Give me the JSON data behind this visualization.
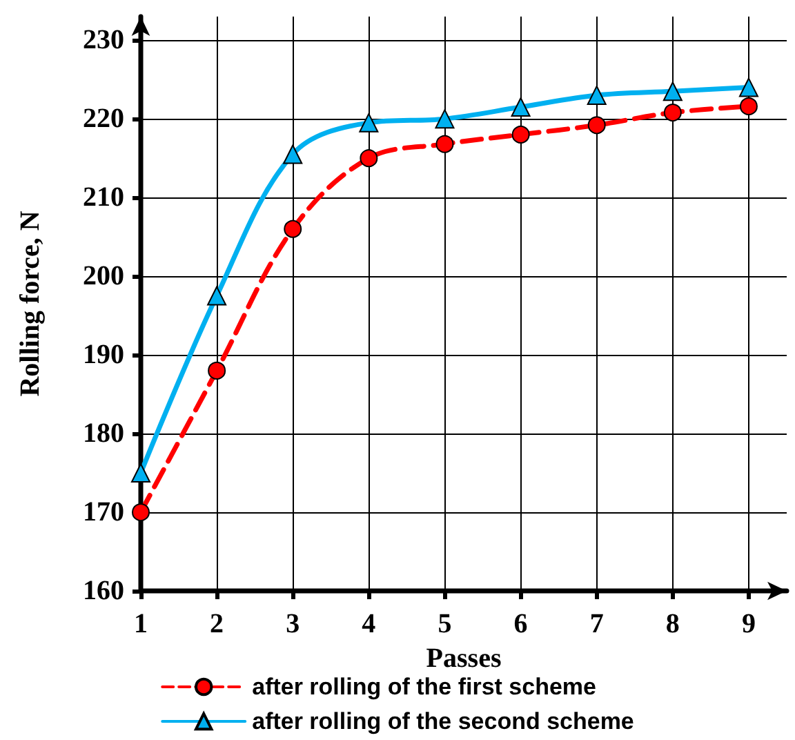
{
  "chart_data": {
    "type": "line",
    "xlabel": "Passes",
    "ylabel": "Rolling force, N",
    "x": [
      1,
      2,
      3,
      4,
      5,
      6,
      7,
      8,
      9
    ],
    "series": [
      {
        "name": "after rolling of the first scheme",
        "color": "#ff0000",
        "marker": "circle",
        "line_style": "dashed",
        "values": [
          170,
          188,
          206,
          215,
          216.8,
          218,
          219.2,
          220.8,
          221.6
        ]
      },
      {
        "name": "after rolling of the second scheme",
        "color": "#00b0f0",
        "marker": "triangle",
        "line_style": "solid",
        "values": [
          175,
          197.5,
          215.5,
          219.5,
          220,
          221.5,
          223,
          223.5,
          224
        ]
      }
    ],
    "xlim": [
      1,
      9.5
    ],
    "xticks": [
      1,
      2,
      3,
      4,
      5,
      6,
      7,
      8,
      9
    ],
    "ylim": [
      160,
      233
    ],
    "yticks": [
      160,
      170,
      180,
      190,
      200,
      210,
      220,
      230
    ],
    "grid": true,
    "legend": "bottom"
  }
}
